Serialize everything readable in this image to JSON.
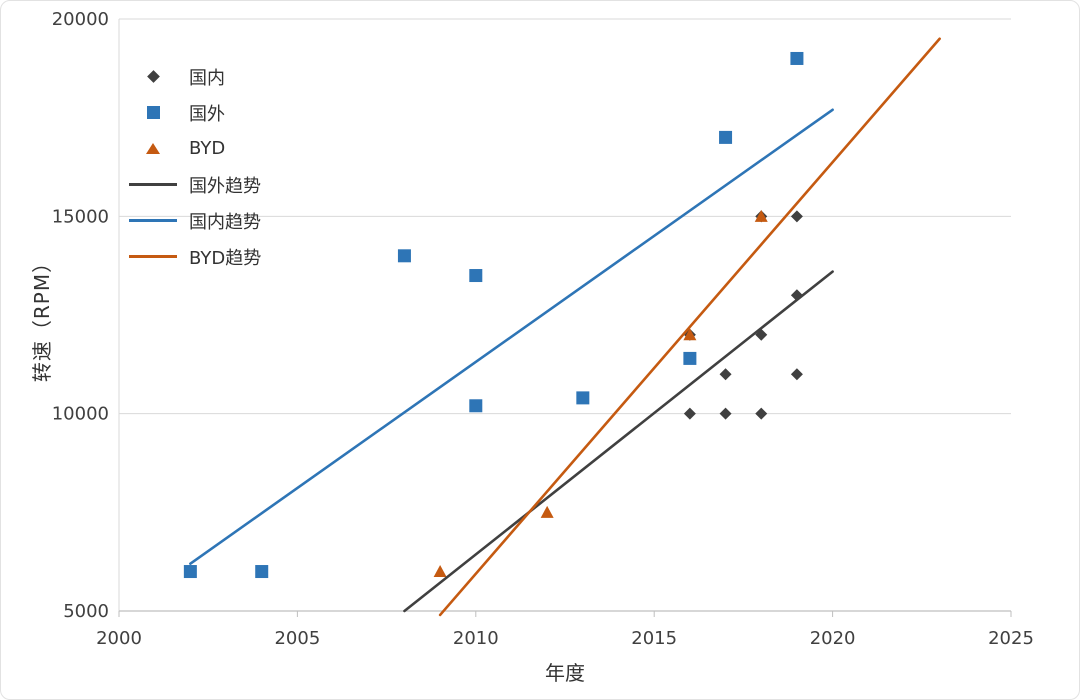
{
  "chart_data": {
    "type": "scatter",
    "title": "",
    "xlabel": "年度",
    "ylabel": "转速（RPM）",
    "xlim": [
      2000,
      2025
    ],
    "ylim": [
      5000,
      20000
    ],
    "xticks": [
      2000,
      2005,
      2010,
      2015,
      2020,
      2025
    ],
    "yticks": [
      5000,
      10000,
      15000,
      20000
    ],
    "grid": "horizontal",
    "legend_position": "inside-top-left",
    "colors": {
      "domestic": "#404040",
      "foreign": "#2e75b6",
      "byd": "#c55a11",
      "gridline": "#d9d9d9",
      "axis": "#bfbfbf",
      "tick_text": "#404040"
    },
    "series": [
      {
        "name": "国内",
        "type": "scatter",
        "marker": "diamond",
        "color": "#404040",
        "points": [
          [
            2016,
            10000
          ],
          [
            2016,
            12000
          ],
          [
            2017,
            10000
          ],
          [
            2017,
            11000
          ],
          [
            2018,
            10000
          ],
          [
            2018,
            12000
          ],
          [
            2018,
            15000
          ],
          [
            2019,
            11000
          ],
          [
            2019,
            13000
          ],
          [
            2019,
            15000
          ]
        ]
      },
      {
        "name": "国外",
        "type": "scatter",
        "marker": "square",
        "color": "#2e75b6",
        "points": [
          [
            2002,
            6000
          ],
          [
            2004,
            6000
          ],
          [
            2008,
            14000
          ],
          [
            2010,
            13500
          ],
          [
            2010,
            10200
          ],
          [
            2013,
            10400
          ],
          [
            2016,
            11400
          ],
          [
            2017,
            17000
          ],
          [
            2019,
            19000
          ]
        ]
      },
      {
        "name": "BYD",
        "type": "scatter",
        "marker": "triangle",
        "color": "#c55a11",
        "points": [
          [
            2009,
            6000
          ],
          [
            2012,
            7500
          ],
          [
            2016,
            12000
          ],
          [
            2018,
            15000
          ]
        ]
      },
      {
        "name": "国外趋势",
        "type": "line",
        "color": "#404040",
        "points": [
          [
            2008,
            5000
          ],
          [
            2020,
            13600
          ]
        ]
      },
      {
        "name": "国内趋势",
        "type": "line",
        "color": "#2e75b6",
        "points": [
          [
            2002,
            6200
          ],
          [
            2020,
            17700
          ]
        ]
      },
      {
        "name": "BYD趋势",
        "type": "line",
        "color": "#c55a11",
        "points": [
          [
            2009,
            4900
          ],
          [
            2023,
            19500
          ]
        ]
      }
    ]
  }
}
